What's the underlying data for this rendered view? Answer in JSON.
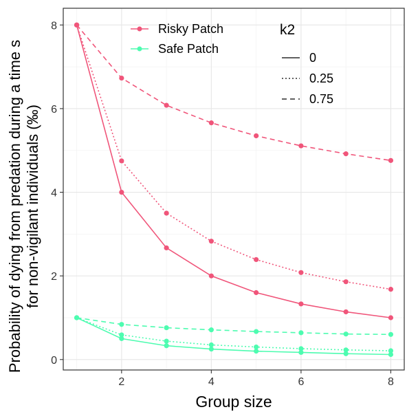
{
  "chart_data": {
    "type": "line",
    "title": "",
    "xlabel": "Group size",
    "ylabel_lines": [
      "Probability of dying from predation during a time s",
      "for non-vigilant individuals (‰)"
    ],
    "xlim": [
      0.7,
      8.3
    ],
    "ylim": [
      -0.25,
      8.4
    ],
    "x_ticks": [
      2,
      4,
      6,
      8
    ],
    "y_ticks": [
      0,
      2,
      4,
      6,
      8
    ],
    "grid": true,
    "x": [
      1,
      2,
      3,
      4,
      5,
      6,
      7,
      8
    ],
    "series": [
      {
        "name": "Risky Patch",
        "k2": "0",
        "color": "#f0557a",
        "dash": "solid",
        "values": [
          8,
          4.0,
          2.67,
          2.0,
          1.6,
          1.33,
          1.14,
          1.0
        ]
      },
      {
        "name": "Risky Patch",
        "k2": "0.25",
        "color": "#f0557a",
        "dash": "dotted",
        "values": [
          8,
          4.75,
          3.5,
          2.83,
          2.39,
          2.08,
          1.86,
          1.68
        ]
      },
      {
        "name": "Risky Patch",
        "k2": "0.75",
        "color": "#f0557a",
        "dash": "dashed",
        "values": [
          8,
          6.73,
          6.08,
          5.66,
          5.35,
          5.11,
          4.92,
          4.76
        ]
      },
      {
        "name": "Safe Patch",
        "k2": "0",
        "color": "#4dfcb0",
        "dash": "solid",
        "values": [
          1,
          0.5,
          0.33,
          0.25,
          0.2,
          0.17,
          0.14,
          0.12
        ]
      },
      {
        "name": "Safe Patch",
        "k2": "0.25",
        "color": "#4dfcb0",
        "dash": "dotted",
        "values": [
          1,
          0.59,
          0.44,
          0.35,
          0.3,
          0.26,
          0.23,
          0.21
        ]
      },
      {
        "name": "Safe Patch",
        "k2": "0.75",
        "color": "#4dfcb0",
        "dash": "dashed",
        "values": [
          1,
          0.84,
          0.76,
          0.71,
          0.67,
          0.64,
          0.61,
          0.6
        ]
      }
    ],
    "legend_color": {
      "items": [
        {
          "label": "Risky Patch",
          "color": "#f0557a"
        },
        {
          "label": "Safe Patch",
          "color": "#4dfcb0"
        }
      ]
    },
    "legend_linetype": {
      "title": "k2",
      "items": [
        {
          "label": "0",
          "dash": "solid"
        },
        {
          "label": "0.25",
          "dash": "dotted"
        },
        {
          "label": "0.75",
          "dash": "dashed"
        }
      ]
    },
    "legend_position": "top-right inside"
  }
}
